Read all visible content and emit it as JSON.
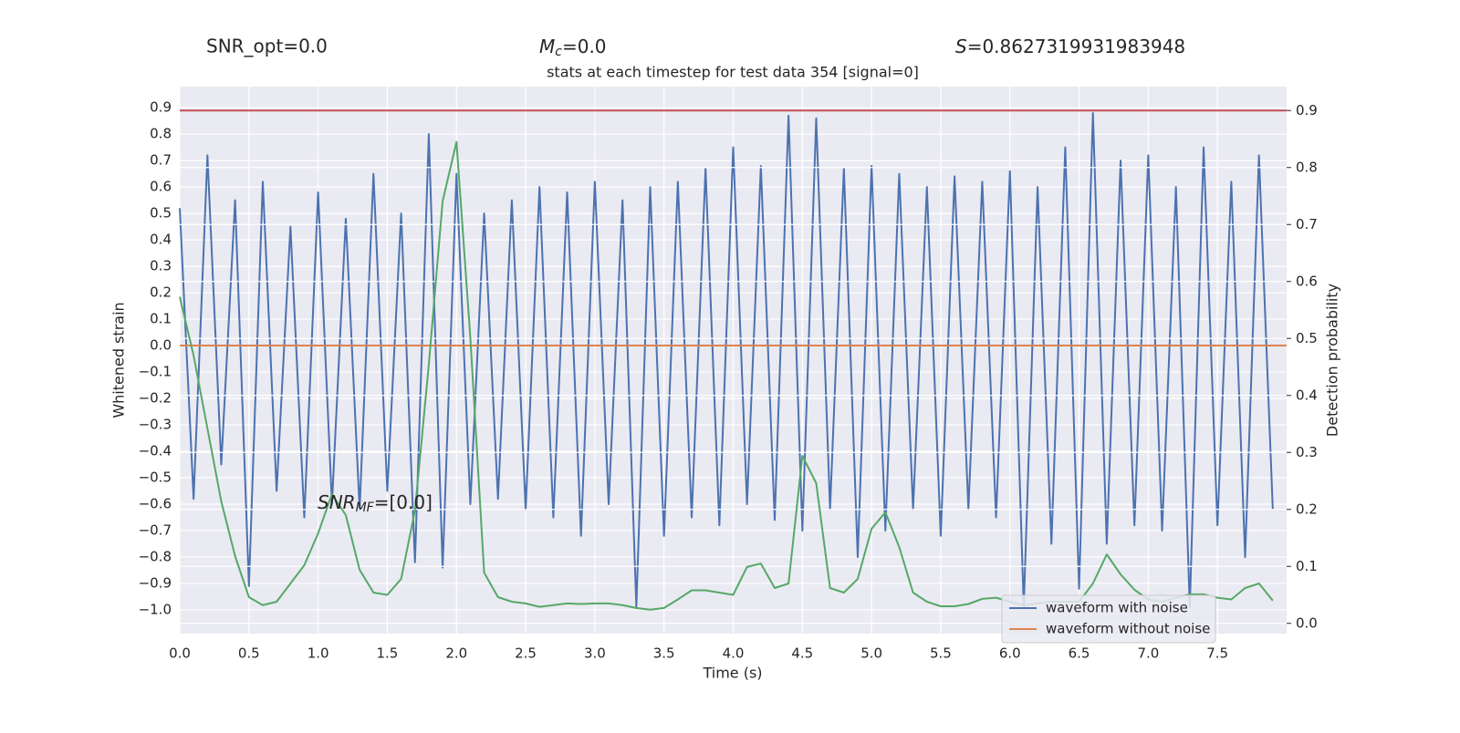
{
  "chart_data": {
    "type": "line",
    "title": "stats at each timestep for test data 354 [signal=0]",
    "xlabel": "Time (s)",
    "ylabel": "Whitened strain",
    "y2label": "Detection probability",
    "annotations": {
      "snr_opt": "SNR_opt=0.0",
      "mc": {
        "symbol": "M",
        "sub": "c",
        "rest": "=0.0"
      },
      "s": {
        "symbol": "S",
        "rest": "=0.8627319931983948"
      },
      "snr_mf": {
        "symbol": "SNR",
        "sub": "MF",
        "rest": "=[0.0]"
      }
    },
    "xlim": [
      0,
      8
    ],
    "ylim": [
      -1.09,
      0.98
    ],
    "y2lim": [
      -0.018,
      0.942
    ],
    "xticks": [
      {
        "value": 0,
        "label": "0.0"
      },
      0.5,
      {
        "value": 1,
        "label": "1.0"
      },
      1.5,
      {
        "value": 2,
        "label": "2.0"
      },
      2.5,
      {
        "value": 3,
        "label": "3.0"
      },
      3.5,
      {
        "value": 4,
        "label": "4.0"
      },
      4.5,
      {
        "value": 5,
        "label": "5.0"
      },
      5.5,
      {
        "value": 6,
        "label": "6.0"
      },
      6.5,
      {
        "value": 7,
        "label": "7.0"
      },
      7.5
    ],
    "yticks": [
      {
        "value": -1.0,
        "label": "−1.0"
      },
      {
        "value": -0.9,
        "label": "−0.9"
      },
      {
        "value": -0.8,
        "label": "−0.8"
      },
      {
        "value": -0.7,
        "label": "−0.7"
      },
      {
        "value": -0.6,
        "label": "−0.6"
      },
      {
        "value": -0.5,
        "label": "−0.5"
      },
      {
        "value": -0.4,
        "label": "−0.4"
      },
      {
        "value": -0.3,
        "label": "−0.3"
      },
      {
        "value": -0.2,
        "label": "−0.2"
      },
      {
        "value": -0.1,
        "label": "−0.1"
      },
      {
        "value": 0,
        "label": "0.0"
      },
      0.1,
      0.2,
      0.3,
      0.4,
      0.5,
      0.6,
      0.7,
      0.8,
      0.9
    ],
    "y2ticks": [
      {
        "value": 0,
        "label": "0.0"
      },
      0.1,
      0.2,
      0.3,
      0.4,
      0.5,
      0.6,
      0.7,
      0.8,
      0.9
    ],
    "grid": true,
    "legend": "lower right",
    "x": [
      0.0,
      0.1,
      0.2,
      0.3,
      0.4,
      0.5,
      0.6,
      0.7,
      0.8,
      0.9,
      1.0,
      1.1,
      1.2,
      1.3,
      1.4,
      1.5,
      1.6,
      1.7,
      1.8,
      1.9,
      2.0,
      2.1,
      2.2,
      2.3,
      2.4,
      2.5,
      2.6,
      2.7,
      2.8,
      2.9,
      3.0,
      3.1,
      3.2,
      3.3,
      3.4,
      3.5,
      3.6,
      3.7,
      3.8,
      3.9,
      4.0,
      4.1,
      4.2,
      4.3,
      4.4,
      4.5,
      4.6,
      4.7,
      4.8,
      4.9,
      5.0,
      5.1,
      5.2,
      5.3,
      5.4,
      5.5,
      5.6,
      5.7,
      5.8,
      5.9,
      6.0,
      6.1,
      6.2,
      6.3,
      6.4,
      6.5,
      6.6,
      6.7,
      6.8,
      6.9,
      7.0,
      7.1,
      7.2,
      7.3,
      7.4,
      7.5,
      7.6,
      7.7,
      7.8,
      7.9
    ],
    "series": [
      {
        "name": "waveform with noise",
        "color": "#4c72b0",
        "values": [
          0.52,
          -0.58,
          0.72,
          -0.45,
          0.55,
          -0.91,
          0.62,
          -0.55,
          0.45,
          -0.65,
          0.58,
          -0.6,
          0.48,
          -0.62,
          0.65,
          -0.55,
          0.5,
          -0.82,
          0.8,
          -0.84,
          0.65,
          -0.6,
          0.5,
          -0.58,
          0.55,
          -0.62,
          0.6,
          -0.65,
          0.58,
          -0.72,
          0.62,
          -0.6,
          0.55,
          -0.99,
          0.6,
          -0.72,
          0.62,
          -0.65,
          0.67,
          -0.68,
          0.75,
          -0.6,
          0.68,
          -0.66,
          0.87,
          -0.7,
          0.86,
          -0.62,
          0.67,
          -0.8,
          0.68,
          -0.7,
          0.65,
          -0.62,
          0.6,
          -0.72,
          0.64,
          -0.62,
          0.62,
          -0.65,
          0.66,
          -0.99,
          0.6,
          -0.75,
          0.75,
          -0.92,
          0.88,
          -0.75,
          0.7,
          -0.68,
          0.72,
          -0.7,
          0.6,
          -0.99,
          0.75,
          -0.68,
          0.62,
          -0.8,
          0.72,
          -0.62
        ]
      },
      {
        "name": "waveform without noise",
        "color": "#dd8452",
        "x": [
          0,
          8
        ],
        "values": [
          0,
          0
        ]
      },
      {
        "color": "#55a868",
        "axis": "y2",
        "values": [
          0.573,
          0.47,
          0.342,
          0.214,
          0.118,
          0.046,
          0.032,
          0.038,
          0.07,
          0.102,
          0.158,
          0.227,
          0.19,
          0.094,
          0.054,
          0.05,
          0.078,
          0.198,
          0.454,
          0.741,
          0.845,
          0.502,
          0.089,
          0.046,
          0.038,
          0.035,
          0.029,
          0.032,
          0.035,
          0.034,
          0.035,
          0.035,
          0.032,
          0.027,
          0.024,
          0.027,
          0.042,
          0.058,
          0.058,
          0.054,
          0.05,
          0.099,
          0.105,
          0.062,
          0.07,
          0.294,
          0.246,
          0.062,
          0.054,
          0.078,
          0.166,
          0.195,
          0.134,
          0.054,
          0.038,
          0.03,
          0.03,
          0.034,
          0.043,
          0.045,
          0.038,
          0.032,
          0.035,
          0.038,
          0.038,
          0.038,
          0.07,
          0.121,
          0.086,
          0.059,
          0.042,
          0.038,
          0.045,
          0.051,
          0.051,
          0.045,
          0.042,
          0.062,
          0.07,
          0.04
        ]
      }
    ],
    "hline": {
      "value": 0.9,
      "axis": "y2",
      "color": "#c44e52"
    }
  }
}
